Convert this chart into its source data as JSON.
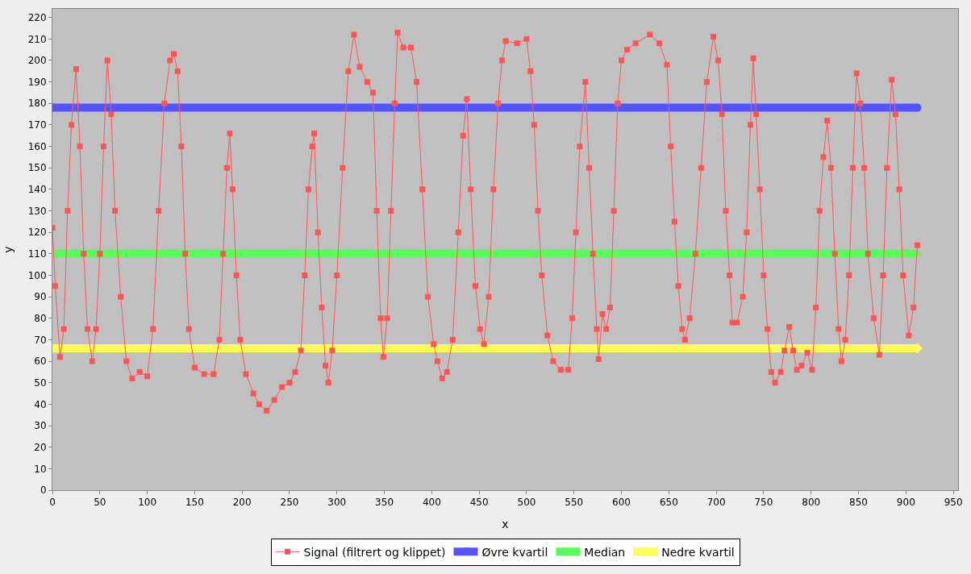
{
  "chart_data": {
    "type": "line",
    "xlabel": "x",
    "ylabel": "y",
    "xlim": [
      0,
      955
    ],
    "ylim": [
      0,
      224
    ],
    "xticks": [
      0,
      50,
      100,
      150,
      200,
      250,
      300,
      350,
      400,
      450,
      500,
      550,
      600,
      650,
      700,
      750,
      800,
      850,
      900,
      950
    ],
    "yticks": [
      0,
      10,
      20,
      30,
      40,
      50,
      60,
      70,
      80,
      90,
      100,
      110,
      120,
      130,
      140,
      150,
      160,
      170,
      180,
      190,
      200,
      210,
      220
    ],
    "grid": false,
    "legend": "bottom",
    "series": [
      {
        "name": "Signal (filtrert og klippet)",
        "color": "#ff5555",
        "marker": "square",
        "x": [
          0,
          3,
          8,
          12,
          16,
          20,
          25,
          29,
          33,
          37,
          42,
          46,
          50,
          54,
          58,
          62,
          66,
          72,
          78,
          84,
          92,
          100,
          106,
          112,
          118,
          124,
          128,
          132,
          136,
          140,
          144,
          150,
          160,
          170,
          176,
          180,
          184,
          187,
          190,
          194,
          198,
          204,
          212,
          218,
          226,
          234,
          242,
          250,
          256,
          262,
          266,
          270,
          274,
          276,
          280,
          284,
          288,
          291,
          295,
          300,
          306,
          312,
          318,
          324,
          332,
          338,
          342,
          346,
          349,
          353,
          357,
          361,
          364,
          370,
          378,
          384,
          390,
          396,
          402,
          406,
          411,
          416,
          422,
          428,
          433,
          437,
          441,
          446,
          451,
          455,
          460,
          465,
          470,
          474,
          478,
          490,
          500,
          504,
          508,
          512,
          516,
          522,
          528,
          536,
          544,
          548,
          552,
          556,
          562,
          566,
          570,
          574,
          576,
          580,
          584,
          588,
          592,
          596,
          600,
          606,
          615,
          630,
          640,
          648,
          652,
          656,
          660,
          664,
          667,
          672,
          678,
          684,
          690,
          697,
          702,
          706,
          710,
          714,
          717,
          722,
          728,
          732,
          736,
          739,
          742,
          746,
          750,
          754,
          758,
          762,
          768,
          772,
          777,
          781,
          785,
          790,
          796,
          801,
          805,
          809,
          813,
          817,
          821,
          825,
          829,
          832,
          836,
          840,
          844,
          848,
          852,
          856,
          860,
          866,
          872,
          876,
          880,
          885,
          889,
          893,
          897,
          903,
          908,
          912
        ],
        "values": [
          122,
          95,
          62,
          75,
          130,
          170,
          196,
          160,
          110,
          75,
          60,
          75,
          110,
          160,
          200,
          175,
          130,
          90,
          60,
          52,
          55,
          53,
          75,
          130,
          180,
          200,
          203,
          195,
          160,
          110,
          75,
          57,
          54,
          54,
          70,
          110,
          150,
          166,
          140,
          100,
          70,
          54,
          45,
          40,
          37,
          42,
          48,
          50,
          55,
          65,
          100,
          140,
          160,
          166,
          120,
          85,
          58,
          50,
          65,
          100,
          150,
          195,
          212,
          197,
          190,
          185,
          130,
          80,
          62,
          80,
          130,
          180,
          213,
          206,
          206,
          190,
          140,
          90,
          68,
          60,
          52,
          55,
          70,
          120,
          165,
          182,
          140,
          95,
          75,
          68,
          90,
          140,
          180,
          200,
          209,
          208,
          210,
          195,
          170,
          130,
          100,
          72,
          60,
          56,
          56,
          80,
          120,
          160,
          190,
          150,
          110,
          75,
          61,
          82,
          75,
          85,
          130,
          180,
          200,
          205,
          208,
          212,
          208,
          198,
          160,
          125,
          95,
          75,
          70,
          80,
          110,
          150,
          190,
          211,
          200,
          175,
          130,
          100,
          78,
          78,
          90,
          120,
          170,
          201,
          175,
          140,
          100,
          75,
          55,
          50,
          55,
          65,
          76,
          65,
          56,
          58,
          64,
          56,
          85,
          130,
          155,
          172,
          150,
          110,
          75,
          60,
          70,
          100,
          150,
          194,
          180,
          150,
          110,
          80,
          63,
          100,
          150,
          191,
          175,
          140,
          100,
          72,
          85,
          114
        ]
      },
      {
        "name": "Øvre kvartil",
        "color": "#5555ff",
        "marker": "circle",
        "x": [
          0,
          912
        ],
        "values": [
          178,
          178
        ]
      },
      {
        "name": "Median",
        "color": "#55ff55",
        "marker": "triangle",
        "x": [
          0,
          912
        ],
        "values": [
          110,
          110
        ]
      },
      {
        "name": "Nedre kvartil",
        "color": "#ffff55",
        "marker": "diamond",
        "x": [
          0,
          912
        ],
        "values": [
          66,
          66
        ]
      }
    ]
  }
}
